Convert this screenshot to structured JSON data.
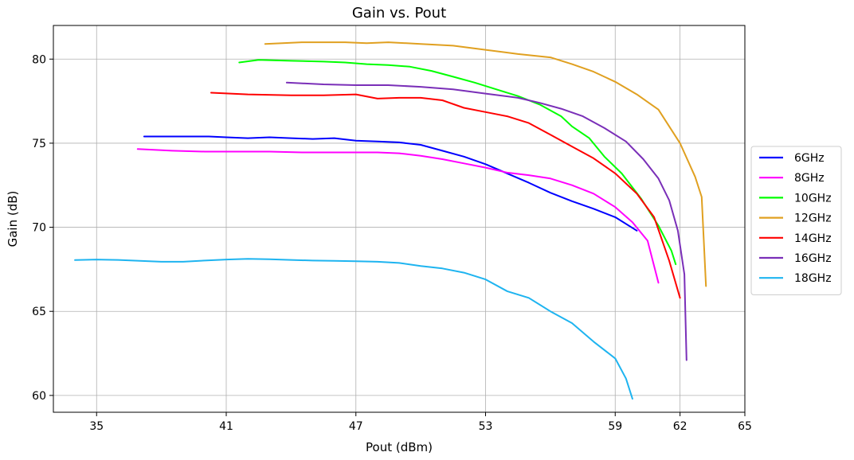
{
  "chart_data": {
    "type": "line",
    "title": "Gain vs. Pout",
    "xlabel": "Pout (dBm)",
    "ylabel": "Gain (dB)",
    "xlim": [
      33,
      65
    ],
    "ylim": [
      59,
      82
    ],
    "xticks": [
      35,
      41,
      47,
      53,
      59,
      62,
      65
    ],
    "xtick_labels": [
      "35",
      "41",
      "47",
      "53",
      "59",
      "62",
      "65"
    ],
    "yticks": [
      60,
      65,
      70,
      75,
      80
    ],
    "ytick_labels": [
      "60",
      "65",
      "70",
      "75",
      "80"
    ],
    "grid": true,
    "legend_position": "right",
    "series": [
      {
        "name": "6GHz",
        "color": "#0000ff",
        "x": [
          37.2,
          39.0,
          40.2,
          41.0,
          42.0,
          43.0,
          44.0,
          45.0,
          46.0,
          47.0,
          48.0,
          49.0,
          50.0,
          51.0,
          52.0,
          53.0,
          54.0,
          55.0,
          56.0,
          57.0,
          58.0,
          59.0,
          60.0
        ],
        "y": [
          75.4,
          75.4,
          75.4,
          75.35,
          75.3,
          75.35,
          75.3,
          75.25,
          75.3,
          75.15,
          75.1,
          75.05,
          74.9,
          74.55,
          74.2,
          73.75,
          73.2,
          72.65,
          72.05,
          71.55,
          71.1,
          70.6,
          69.8
        ]
      },
      {
        "name": "8GHz",
        "color": "#ff00ff",
        "x": [
          36.9,
          38.5,
          40.0,
          41.5,
          43.0,
          44.5,
          46.0,
          47.0,
          48.0,
          49.0,
          50.0,
          51.0,
          52.0,
          53.0,
          54.0,
          55.0,
          56.0,
          57.0,
          58.0,
          59.0,
          59.8,
          60.5,
          61.0
        ],
        "y": [
          74.65,
          74.55,
          74.5,
          74.5,
          74.5,
          74.45,
          74.45,
          74.45,
          74.45,
          74.4,
          74.25,
          74.05,
          73.8,
          73.55,
          73.25,
          73.1,
          72.9,
          72.5,
          72.0,
          71.2,
          70.3,
          69.2,
          66.7
        ]
      },
      {
        "name": "10GHz",
        "color": "#00ff00",
        "x": [
          41.6,
          42.5,
          44.0,
          45.5,
          46.5,
          47.5,
          48.5,
          49.5,
          50.5,
          51.5,
          52.5,
          53.5,
          54.5,
          55.5,
          56.5,
          57.0,
          57.8,
          58.5,
          59.3,
          60.2,
          61.0,
          61.6,
          61.8
        ],
        "y": [
          79.8,
          79.95,
          79.9,
          79.85,
          79.8,
          79.7,
          79.65,
          79.55,
          79.3,
          78.95,
          78.6,
          78.2,
          77.8,
          77.3,
          76.6,
          76.0,
          75.3,
          74.2,
          73.2,
          71.7,
          70.1,
          68.6,
          67.8
        ]
      },
      {
        "name": "12GHz",
        "color": "#e0a020",
        "x": [
          42.8,
          44.5,
          46.5,
          47.5,
          48.5,
          50.0,
          51.5,
          53.0,
          54.5,
          56.0,
          57.0,
          58.0,
          59.0,
          60.0,
          61.0,
          62.0,
          62.7,
          63.0,
          63.2
        ],
        "y": [
          80.9,
          81.0,
          81.0,
          80.95,
          81.0,
          80.9,
          80.8,
          80.55,
          80.3,
          80.1,
          79.7,
          79.25,
          78.65,
          77.9,
          77.0,
          75.0,
          73.0,
          71.8,
          66.5
        ]
      },
      {
        "name": "14GHz",
        "color": "#ff0000",
        "x": [
          40.3,
          42.0,
          44.0,
          45.5,
          47.0,
          48.0,
          49.0,
          50.0,
          51.0,
          52.0,
          53.0,
          54.0,
          55.0,
          56.0,
          57.0,
          58.0,
          59.0,
          60.0,
          60.8,
          61.5,
          62.0
        ],
        "y": [
          78.0,
          77.9,
          77.85,
          77.85,
          77.9,
          77.65,
          77.7,
          77.7,
          77.55,
          77.1,
          76.85,
          76.6,
          76.2,
          75.5,
          74.8,
          74.1,
          73.2,
          72.0,
          70.6,
          68.0,
          65.8
        ]
      },
      {
        "name": "16GHz",
        "color": "#7a2fb8",
        "x": [
          43.8,
          45.5,
          47.0,
          48.5,
          50.0,
          51.5,
          53.0,
          54.5,
          55.5,
          56.5,
          57.5,
          58.5,
          59.5,
          60.3,
          61.0,
          61.5,
          61.9,
          62.2,
          62.3
        ],
        "y": [
          78.6,
          78.5,
          78.45,
          78.45,
          78.35,
          78.2,
          77.95,
          77.7,
          77.4,
          77.05,
          76.6,
          75.9,
          75.1,
          74.05,
          72.9,
          71.6,
          69.8,
          67.2,
          62.1
        ]
      },
      {
        "name": "18GHz",
        "color": "#1eb4f0",
        "x": [
          34.0,
          35.0,
          36.0,
          37.0,
          38.0,
          39.0,
          40.0,
          41.0,
          42.0,
          43.0,
          44.0,
          45.0,
          46.0,
          47.0,
          48.0,
          49.0,
          50.0,
          51.0,
          52.0,
          53.0,
          54.0,
          55.0,
          56.0,
          57.0,
          58.0,
          59.0,
          59.5,
          59.8
        ],
        "y": [
          68.05,
          68.08,
          68.06,
          68.0,
          67.95,
          67.95,
          68.02,
          68.08,
          68.12,
          68.1,
          68.06,
          68.02,
          68.0,
          67.98,
          67.95,
          67.88,
          67.7,
          67.55,
          67.3,
          66.9,
          66.2,
          65.8,
          65.0,
          64.3,
          63.2,
          62.2,
          61.0,
          59.8
        ]
      }
    ]
  }
}
